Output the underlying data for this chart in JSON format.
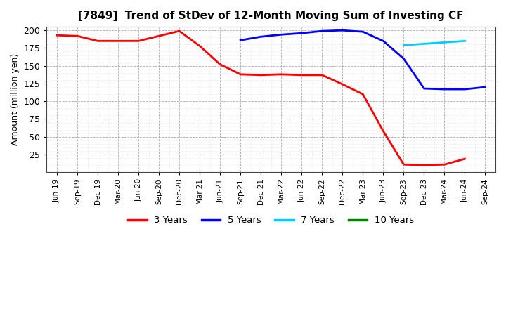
{
  "title": "[7849]  Trend of StDev of 12-Month Moving Sum of Investing CF",
  "ylabel": "Amount (million yen)",
  "background_color": "#ffffff",
  "grid_major_color": "#888888",
  "grid_minor_color": "#bbbbbb",
  "ylim": [
    0,
    205
  ],
  "yticks": [
    25,
    50,
    75,
    100,
    125,
    150,
    175,
    200
  ],
  "x_labels": [
    "Jun-19",
    "Sep-19",
    "Dec-19",
    "Mar-20",
    "Jun-20",
    "Sep-20",
    "Dec-20",
    "Mar-21",
    "Jun-21",
    "Sep-21",
    "Dec-21",
    "Mar-22",
    "Jun-22",
    "Sep-22",
    "Dec-22",
    "Mar-23",
    "Jun-23",
    "Sep-23",
    "Dec-23",
    "Mar-24",
    "Jun-24",
    "Sep-24"
  ],
  "series": {
    "3 Years": {
      "color": "#ff0000",
      "x": [
        0,
        1,
        2,
        3,
        4,
        5,
        6,
        7,
        8,
        9,
        10,
        11,
        12,
        13,
        14,
        15,
        16,
        17,
        18,
        19,
        20
      ],
      "y": [
        193,
        192,
        185,
        185,
        185,
        192,
        199,
        178,
        152,
        138,
        137,
        138,
        137,
        137,
        124,
        110,
        58,
        11,
        10,
        11,
        19
      ]
    },
    "5 Years": {
      "color": "#0000ff",
      "x": [
        9,
        10,
        11,
        12,
        13,
        14,
        15,
        16,
        17,
        18,
        19,
        20,
        21
      ],
      "y": [
        186,
        191,
        194,
        196,
        199,
        200,
        198,
        185,
        160,
        118,
        117,
        117,
        120
      ]
    },
    "7 Years": {
      "color": "#00ccff",
      "x": [
        17,
        18,
        19,
        20
      ],
      "y": [
        179,
        181,
        183,
        185
      ]
    },
    "10 Years": {
      "color": "#008000",
      "x": [],
      "y": []
    }
  },
  "legend_labels": [
    "3 Years",
    "5 Years",
    "7 Years",
    "10 Years"
  ],
  "legend_colors": [
    "#ff0000",
    "#0000ff",
    "#00ccff",
    "#008000"
  ]
}
